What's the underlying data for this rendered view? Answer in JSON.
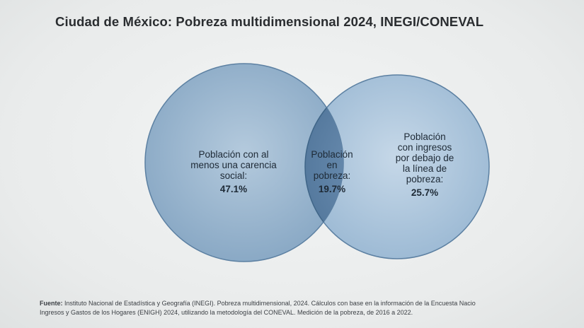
{
  "title": "Ciudad de México: Pobreza multidimensional 2024, INEGI/CONEVAL",
  "sets": {
    "left": {
      "label_lines": [
        "Población con al",
        "menos una carencia",
        "social:"
      ],
      "value": "47.1%"
    },
    "intersection": {
      "label_lines": [
        "Población",
        "en",
        "pobreza:"
      ],
      "value": "19.7%"
    },
    "right": {
      "label_lines": [
        "Población",
        "con ingresos",
        "por debajo de",
        "la línea de",
        "pobreza:"
      ],
      "value": "25.7%"
    }
  },
  "colors": {
    "left_circle": "#8fadc8",
    "right_circle": "#a9c3da",
    "intersection": "#5f83a7",
    "outline": "#3f6587"
  },
  "footer": {
    "source_label": "Fuente:",
    "line1": " Instituto Nacional de Estadística y Geografía (INEGI). Pobreza multidimensional, 2024. Cálculos con base en la información de la Encuesta Nacio",
    "line2": "Ingresos y Gastos de los Hogares (ENIGH) 2024, utilizando la metodología del CONEVAL. Medición de la pobreza, de 2016 a 2022."
  }
}
